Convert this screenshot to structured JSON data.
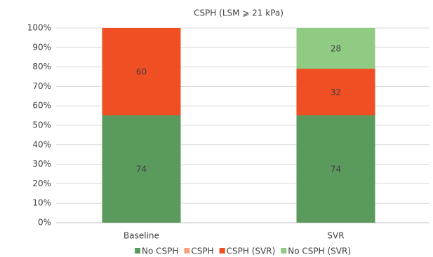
{
  "chart_data": {
    "type": "bar",
    "stacking": "percent",
    "title": "CSPH (LSM ⩾ 21 kPa)",
    "categories": [
      "Baseline",
      "SVR"
    ],
    "series": [
      {
        "name": "No CSPH",
        "color": "#5b9a5d",
        "values": [
          74,
          74
        ]
      },
      {
        "name": "CSPH",
        "color": "#f8a27c",
        "values": [
          60,
          null
        ],
        "point_colors": [
          "#f04e23",
          null
        ]
      },
      {
        "name": "CSPH (SVR)",
        "color": "#f04e23",
        "values": [
          null,
          32
        ]
      },
      {
        "name": "No CSPH (SVR)",
        "color": "#8fcb82",
        "values": [
          null,
          28
        ]
      }
    ],
    "ylim": [
      0,
      100
    ],
    "yticks": [
      {
        "value": 0,
        "label": "0%"
      },
      {
        "value": 10,
        "label": "10%"
      },
      {
        "value": 20,
        "label": "20%"
      },
      {
        "value": 30,
        "label": "30%"
      },
      {
        "value": 40,
        "label": "40%"
      },
      {
        "value": 50,
        "label": "50%"
      },
      {
        "value": 60,
        "label": "60%"
      },
      {
        "value": 70,
        "label": "70%"
      },
      {
        "value": 80,
        "label": "80%"
      },
      {
        "value": 90,
        "label": "90%"
      },
      {
        "value": 100,
        "label": "100%"
      }
    ],
    "grid": true,
    "legend": "bottom"
  }
}
